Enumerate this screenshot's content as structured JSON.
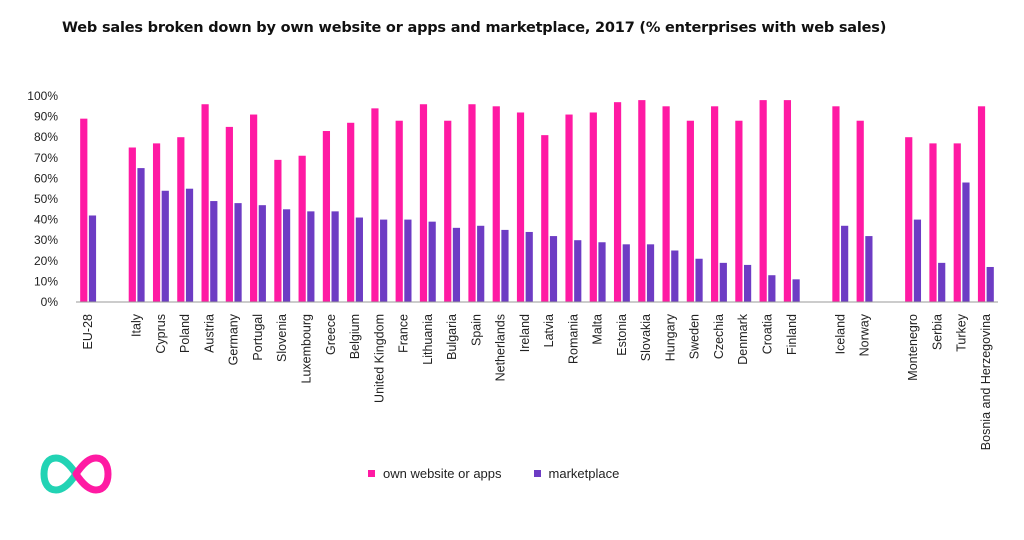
{
  "chart_data": {
    "type": "bar",
    "title": "Web sales broken down by own website or apps and marketplace, 2017 (% enterprises with web sales)",
    "xlabel": "",
    "ylabel": "",
    "ylim": [
      0,
      100
    ],
    "yticks": [
      "0%",
      "10%",
      "20%",
      "30%",
      "40%",
      "50%",
      "60%",
      "70%",
      "80%",
      "90%",
      "100%"
    ],
    "grid": false,
    "legend_position": "bottom",
    "categories": [
      "EU-28",
      "",
      "Italy",
      "Cyprus",
      "Poland",
      "Austria",
      "Germany",
      "Portugal",
      "Slovenia",
      "Luxembourg",
      "Greece",
      "Belgium",
      "United Kingdom",
      "France",
      "Lithuania",
      "Bulgaria",
      "Spain",
      "Netherlands",
      "Ireland",
      "Latvia",
      "Romania",
      "Malta",
      "Estonia",
      "Slovakia",
      "Hungary",
      "Sweden",
      "Czechia",
      "Denmark",
      "Croatia",
      "Finland",
      "",
      "Iceland",
      "Norway",
      "",
      "Montenegro",
      "Serbia",
      "Turkey",
      "Bosnia and Herzegovina"
    ],
    "series": [
      {
        "name": "own website or apps",
        "color": "#ff1aa3",
        "values": [
          89,
          null,
          75,
          77,
          80,
          96,
          85,
          91,
          69,
          71,
          83,
          87,
          94,
          88,
          96,
          88,
          96,
          95,
          92,
          81,
          91,
          92,
          97,
          98,
          95,
          88,
          95,
          88,
          98,
          98,
          null,
          95,
          88,
          null,
          80,
          77,
          77,
          95
        ]
      },
      {
        "name": "marketplace",
        "color": "#6d3cc4",
        "values": [
          42,
          null,
          65,
          54,
          55,
          49,
          48,
          47,
          45,
          44,
          44,
          41,
          40,
          40,
          39,
          36,
          37,
          35,
          34,
          32,
          30,
          29,
          28,
          28,
          25,
          21,
          19,
          18,
          13,
          11,
          null,
          37,
          32,
          null,
          40,
          19,
          58,
          17
        ]
      }
    ]
  },
  "legend": {
    "items": [
      {
        "label": "own website or apps",
        "color": "#ff1aa3"
      },
      {
        "label": "marketplace",
        "color": "#6d3cc4"
      }
    ]
  },
  "logo": {
    "icon": "infinity-logo-icon",
    "colors": [
      "#22d3b4",
      "#ff1aa3"
    ]
  }
}
